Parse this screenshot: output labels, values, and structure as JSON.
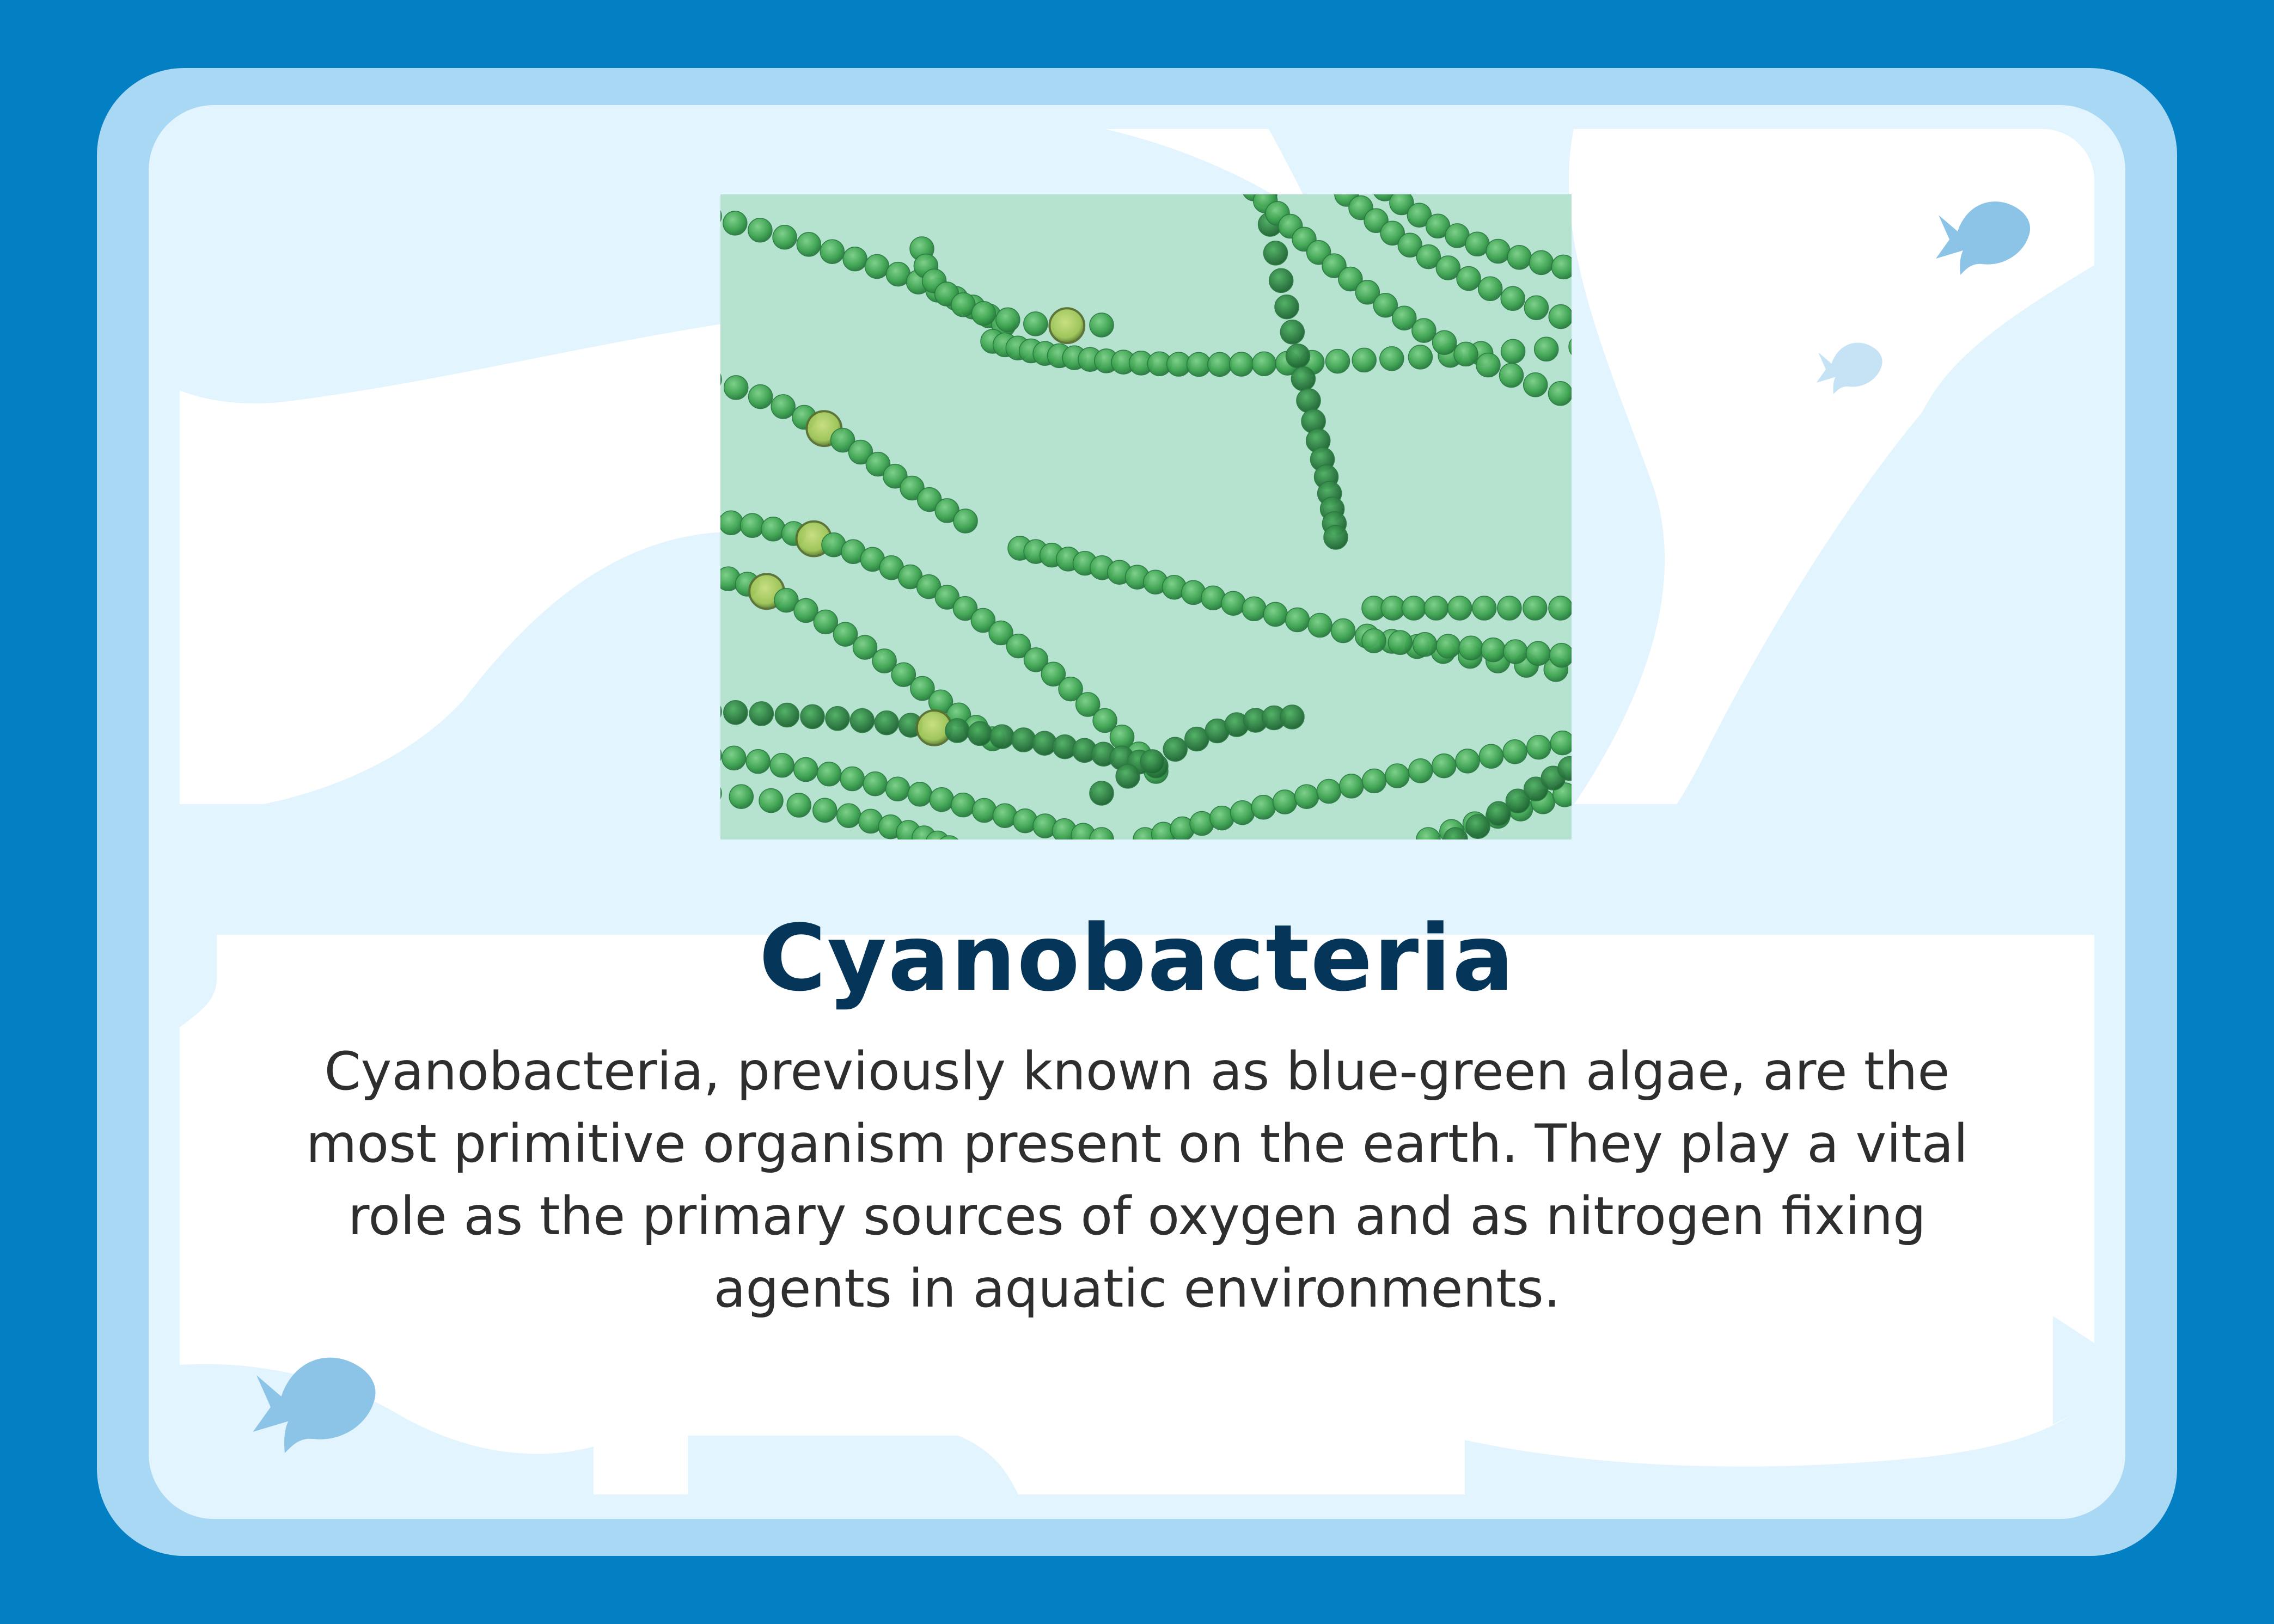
{
  "card": {
    "title": "Cyanobacteria",
    "description": "Cyanobacteria, previously known as blue-green algae, are the most primitive organism present on the earth. They play a vital role as the primary sources of oxygen and as nitrogen fixing agents in aquatic environments."
  },
  "colors": {
    "background": "#0380c4",
    "frame_outer": "#a9d8f5",
    "frame_inner": "#e2f4fd",
    "title": "#05365a",
    "fish": "#8cc4e7"
  },
  "icons": [
    "fish-icon",
    "fish-icon",
    "fish-icon"
  ]
}
